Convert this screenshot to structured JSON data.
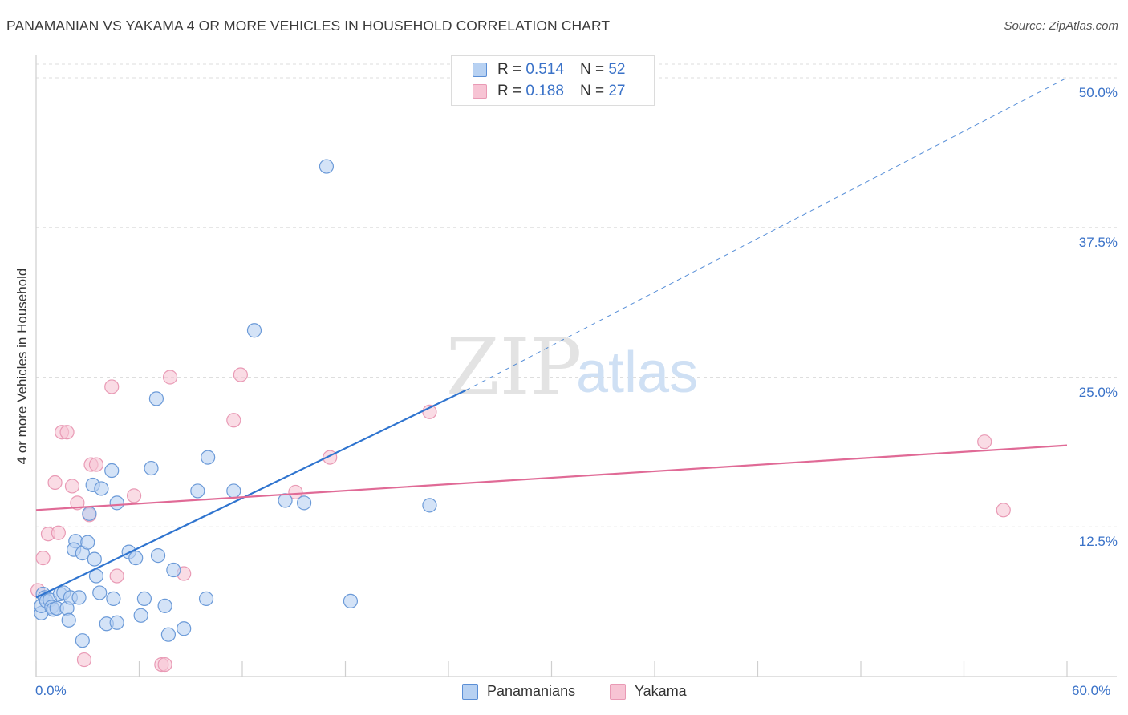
{
  "title": "PANAMANIAN VS YAKAMA 4 OR MORE VEHICLES IN HOUSEHOLD CORRELATION CHART",
  "source": "Source: ZipAtlas.com",
  "watermark": {
    "zip": "ZIP",
    "atlas": "atlas"
  },
  "colors": {
    "blue": "#2f74cf",
    "blue_fill": "#b7d1f2",
    "pink": "#e06a96",
    "pink_fill": "#f7c4d4",
    "tick_text": "#3a72c8",
    "grid": "#dedede"
  },
  "legend": {
    "series1": {
      "r_label": "R =",
      "r_value": "0.514",
      "n_label": "N =",
      "n_value": "52"
    },
    "series2": {
      "r_label": "R =",
      "r_value": "0.188",
      "n_label": "N =",
      "n_value": "27"
    }
  },
  "chart_data": {
    "type": "scatter",
    "title": "PANAMANIAN VS YAKAMA 4 OR MORE VEHICLES IN HOUSEHOLD CORRELATION CHART",
    "xlabel": "",
    "ylabel": "4 or more Vehicles in Household",
    "xlim": [
      0,
      60
    ],
    "ylim": [
      0,
      50
    ],
    "x_tick_labels": {
      "left": "0.0%",
      "right": "60.0%"
    },
    "y_ticks": [
      {
        "value": 12.5,
        "label": "12.5%"
      },
      {
        "value": 25.0,
        "label": "25.0%"
      },
      {
        "value": 37.5,
        "label": "37.5%"
      },
      {
        "value": 50.0,
        "label": "50.0%"
      }
    ],
    "series": [
      {
        "name": "Panamanians",
        "color": "#2f74cf",
        "R": 0.514,
        "N": 52,
        "trend": {
          "x0": 0,
          "y0": 6.6,
          "x1": 25,
          "y1": 23.9,
          "dash_x1": 60,
          "dash_y1": 50.0
        },
        "points": [
          [
            0.3,
            5.3
          ],
          [
            0.3,
            5.9
          ],
          [
            0.4,
            6.9
          ],
          [
            0.5,
            6.6
          ],
          [
            0.6,
            6.3
          ],
          [
            0.8,
            6.4
          ],
          [
            0.9,
            5.8
          ],
          [
            1.0,
            5.6
          ],
          [
            1.2,
            5.7
          ],
          [
            1.4,
            6.9
          ],
          [
            1.6,
            7.0
          ],
          [
            1.8,
            5.7
          ],
          [
            1.9,
            4.7
          ],
          [
            2.0,
            6.6
          ],
          [
            2.3,
            11.3
          ],
          [
            2.2,
            10.6
          ],
          [
            2.5,
            6.6
          ],
          [
            2.7,
            3.0
          ],
          [
            2.7,
            10.3
          ],
          [
            3.0,
            11.2
          ],
          [
            3.1,
            13.6
          ],
          [
            3.3,
            16.0
          ],
          [
            3.4,
            9.8
          ],
          [
            3.5,
            8.4
          ],
          [
            3.7,
            7.0
          ],
          [
            3.8,
            15.7
          ],
          [
            4.1,
            4.4
          ],
          [
            4.4,
            17.2
          ],
          [
            4.5,
            6.5
          ],
          [
            4.7,
            14.5
          ],
          [
            4.7,
            4.5
          ],
          [
            5.4,
            10.4
          ],
          [
            5.8,
            9.9
          ],
          [
            6.1,
            5.1
          ],
          [
            6.3,
            6.5
          ],
          [
            6.7,
            17.4
          ],
          [
            7.0,
            23.2
          ],
          [
            7.1,
            10.1
          ],
          [
            7.5,
            5.9
          ],
          [
            7.7,
            3.5
          ],
          [
            8.0,
            8.9
          ],
          [
            8.6,
            4.0
          ],
          [
            9.4,
            15.5
          ],
          [
            9.9,
            6.5
          ],
          [
            10.0,
            18.3
          ],
          [
            11.5,
            15.5
          ],
          [
            12.7,
            28.9
          ],
          [
            14.5,
            14.7
          ],
          [
            15.6,
            14.5
          ],
          [
            16.9,
            42.6
          ],
          [
            18.3,
            6.3
          ],
          [
            22.9,
            14.3
          ]
        ]
      },
      {
        "name": "Yakama",
        "color": "#e06a96",
        "R": 0.188,
        "N": 27,
        "trend": {
          "x0": 0,
          "y0": 13.9,
          "x1": 60,
          "y1": 19.3
        },
        "points": [
          [
            0.1,
            7.2
          ],
          [
            0.4,
            9.9
          ],
          [
            0.7,
            11.9
          ],
          [
            1.1,
            16.2
          ],
          [
            1.3,
            12.0
          ],
          [
            1.5,
            20.4
          ],
          [
            1.8,
            20.4
          ],
          [
            2.1,
            15.9
          ],
          [
            2.4,
            14.5
          ],
          [
            2.8,
            1.4
          ],
          [
            3.1,
            13.5
          ],
          [
            3.2,
            17.7
          ],
          [
            3.5,
            17.7
          ],
          [
            4.4,
            24.2
          ],
          [
            4.7,
            8.4
          ],
          [
            5.7,
            15.1
          ],
          [
            7.3,
            1.0
          ],
          [
            7.5,
            1.0
          ],
          [
            7.8,
            25.0
          ],
          [
            8.6,
            8.6
          ],
          [
            11.5,
            21.4
          ],
          [
            11.9,
            25.2
          ],
          [
            15.1,
            15.4
          ],
          [
            17.1,
            18.3
          ],
          [
            22.9,
            22.1
          ],
          [
            55.2,
            19.6
          ],
          [
            56.3,
            13.9
          ]
        ]
      }
    ]
  },
  "bottom_legend": {
    "series1": "Panamanians",
    "series2": "Yakama"
  }
}
